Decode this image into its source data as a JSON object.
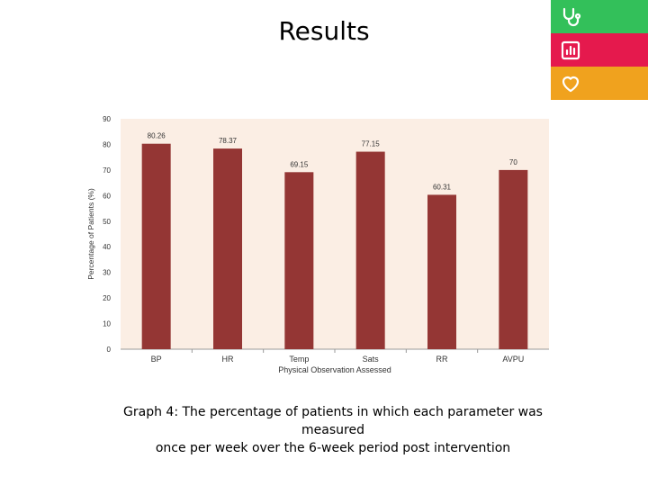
{
  "slide": {
    "title": "Results",
    "caption_line1": "Graph 4: The percentage of patients in which each parameter was measured",
    "caption_line2": "once per week over the 6-week period post intervention"
  },
  "corner_icons": [
    {
      "name": "stethoscope-icon",
      "color": "#33c05a"
    },
    {
      "name": "bar-chart-icon",
      "color": "#e5194d"
    },
    {
      "name": "heart-icon",
      "color": "#f0a21e"
    }
  ],
  "colors": {
    "bar": "#943634",
    "plot_bg": "#fbeee4",
    "axis": "#999999"
  },
  "chart_data": {
    "type": "bar",
    "categories": [
      "BP",
      "HR",
      "Temp",
      "Sats",
      "RR",
      "AVPU"
    ],
    "values": [
      80.26,
      78.37,
      69.15,
      77.15,
      60.31,
      70
    ],
    "value_labels": [
      "80.26",
      "78.37",
      "69.15",
      "77.15",
      "60.31",
      "70"
    ],
    "title": "",
    "xlabel": "Physical Observation Assessed",
    "ylabel": "Percentage of Patients (%)",
    "ylim": [
      0,
      90
    ],
    "yticks": [
      "0",
      "10",
      "20",
      "30",
      "40",
      "50",
      "60",
      "70",
      "80",
      "90"
    ],
    "grid": false,
    "legend": "none"
  }
}
